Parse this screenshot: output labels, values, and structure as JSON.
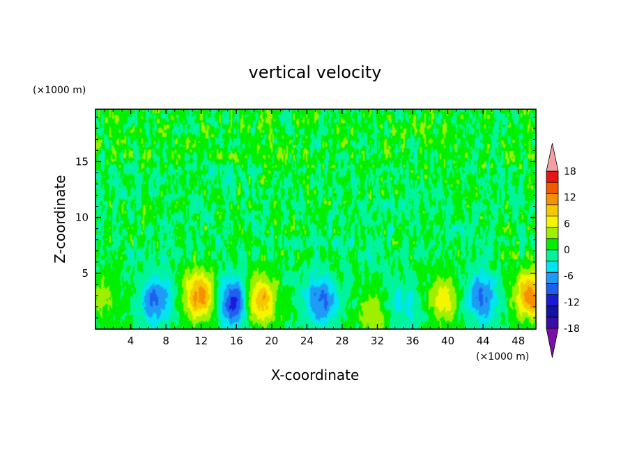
{
  "chart_data": {
    "type": "heatmap",
    "title": "vertical velocity",
    "xlabel": "X-coordinate",
    "ylabel": "Z-coordinate",
    "x_unit": "(×1000 m)",
    "y_unit": "(×1000 m)",
    "xlim": [
      0,
      50
    ],
    "ylim": [
      0,
      19.7
    ],
    "x_ticks": [
      "4",
      "8",
      "12",
      "16",
      "20",
      "24",
      "28",
      "32",
      "36",
      "40",
      "44",
      "48"
    ],
    "x_tick_values": [
      4,
      8,
      12,
      16,
      20,
      24,
      28,
      32,
      36,
      40,
      44,
      48
    ],
    "y_ticks": [
      "5",
      "10",
      "15"
    ],
    "y_tick_values": [
      5,
      10,
      15
    ],
    "colorbar": {
      "tick_labels": [
        "18",
        "12",
        "6",
        "0",
        "-6",
        "-12",
        "-18"
      ],
      "tick_values": [
        18,
        12,
        6,
        0,
        -6,
        -12,
        -18
      ],
      "levels": [
        -21,
        -18,
        -15,
        -12,
        -9,
        -6,
        -3,
        0,
        3,
        6,
        9,
        12,
        15,
        18,
        21
      ],
      "colors": [
        "#7a10a8",
        "#3a0ca8",
        "#1414a0",
        "#1a1ad8",
        "#1e5ef0",
        "#1e9cf5",
        "#00e5f0",
        "#00f59a",
        "#00f000",
        "#9ef000",
        "#f5f500",
        "#f5c800",
        "#f59000",
        "#f55a00",
        "#e61414",
        "#f5a0a0"
      ],
      "extend": "both"
    },
    "features": [
      {
        "x": 0.8,
        "z": 3.0,
        "w": 3.5
      },
      {
        "x": 6.8,
        "z": 2.6,
        "w": -10
      },
      {
        "x": 11.8,
        "z": 3.0,
        "w": 14
      },
      {
        "x": 15.6,
        "z": 2.4,
        "w": -13
      },
      {
        "x": 18.8,
        "z": 2.6,
        "w": 12
      },
      {
        "x": 25.6,
        "z": 2.6,
        "w": -10
      },
      {
        "x": 31.6,
        "z": 1.4,
        "w": 5
      },
      {
        "x": 35.0,
        "z": 2.0,
        "w": -4
      },
      {
        "x": 39.6,
        "z": 2.6,
        "w": 8
      },
      {
        "x": 43.8,
        "z": 2.8,
        "w": -10
      },
      {
        "x": 49.4,
        "z": 3.0,
        "w": 14
      }
    ]
  }
}
